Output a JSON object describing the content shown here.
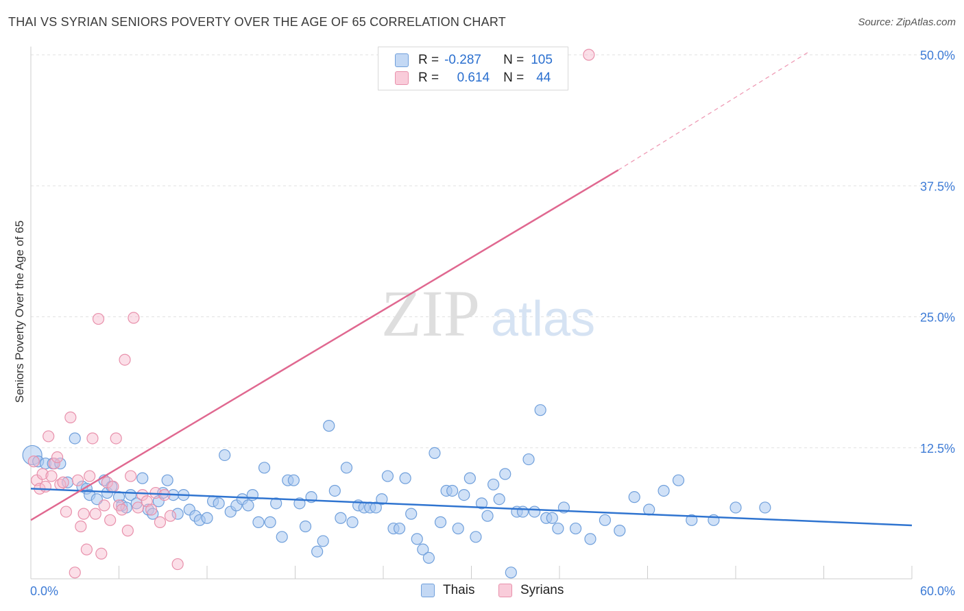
{
  "header": {
    "title": "THAI VS SYRIAN SENIORS POVERTY OVER THE AGE OF 65 CORRELATION CHART",
    "source": "Source: ZipAtlas.com"
  },
  "legend": {
    "rows": [
      {
        "r_label": "R =",
        "r_value": "-0.287",
        "n_label": "N =",
        "n_value": "105",
        "color": "#a9c8f0"
      },
      {
        "r_label": "R =",
        "r_value": "0.614",
        "n_label": "N =",
        "n_value": "44",
        "color": "#f7b9cc"
      }
    ]
  },
  "bottom_legend": [
    "Thais",
    "Syrians"
  ],
  "watermark": {
    "part1": "ZIP",
    "part2": "atlas"
  },
  "chart_data": {
    "type": "scatter",
    "title": "THAI VS SYRIAN SENIORS POVERTY OVER THE AGE OF 65 CORRELATION CHART",
    "xlabel": "",
    "ylabel": "Seniors Poverty Over the Age of 65",
    "xlim": [
      0,
      60
    ],
    "ylim": [
      0,
      50
    ],
    "x_tick_labels": [
      "0.0%",
      "60.0%"
    ],
    "y_tick_labels": [
      "12.5%",
      "25.0%",
      "37.5%",
      "50.0%"
    ],
    "y_ticks": [
      12.5,
      25,
      37.5,
      50
    ],
    "grid": true,
    "colors": {
      "thais_fill": "#a9c8f0",
      "thais_stroke": "#6f9fdb",
      "thais_line": "#2f74d0",
      "syrians_fill": "#f7b9cc",
      "syrians_stroke": "#e890ab",
      "syrians_line": "#e06890",
      "tick_label": "#3d7bd6"
    },
    "series": [
      {
        "name": "Thais",
        "r": -0.287,
        "n": 105,
        "trend": {
          "x": [
            0,
            60
          ],
          "y": [
            8.6,
            5.1
          ]
        },
        "points": [
          [
            0.1,
            11.8
          ],
          [
            0.5,
            11.2
          ],
          [
            1.0,
            11.0
          ],
          [
            1.5,
            11.0
          ],
          [
            2.0,
            11.0
          ],
          [
            2.5,
            9.2
          ],
          [
            3.0,
            13.4
          ],
          [
            3.5,
            8.8
          ],
          [
            3.8,
            8.6
          ],
          [
            4.0,
            8.0
          ],
          [
            4.5,
            7.6
          ],
          [
            5.0,
            9.4
          ],
          [
            5.2,
            8.2
          ],
          [
            5.5,
            8.8
          ],
          [
            6.0,
            7.8
          ],
          [
            6.2,
            7.0
          ],
          [
            6.5,
            6.8
          ],
          [
            6.8,
            8.0
          ],
          [
            7.2,
            7.2
          ],
          [
            7.6,
            9.6
          ],
          [
            8.0,
            6.6
          ],
          [
            8.3,
            6.2
          ],
          [
            8.7,
            7.4
          ],
          [
            9.0,
            8.2
          ],
          [
            9.3,
            9.4
          ],
          [
            9.7,
            8.0
          ],
          [
            10.0,
            6.2
          ],
          [
            10.4,
            8.0
          ],
          [
            10.8,
            6.6
          ],
          [
            11.2,
            6.0
          ],
          [
            11.5,
            5.6
          ],
          [
            12.0,
            5.8
          ],
          [
            12.4,
            7.4
          ],
          [
            12.8,
            7.2
          ],
          [
            13.2,
            11.8
          ],
          [
            13.6,
            6.4
          ],
          [
            14.0,
            7.0
          ],
          [
            14.4,
            7.6
          ],
          [
            14.8,
            7.0
          ],
          [
            15.1,
            8.0
          ],
          [
            15.5,
            5.4
          ],
          [
            15.9,
            10.6
          ],
          [
            16.3,
            5.4
          ],
          [
            16.7,
            7.2
          ],
          [
            17.1,
            4.0
          ],
          [
            17.5,
            9.4
          ],
          [
            17.9,
            9.4
          ],
          [
            18.3,
            7.2
          ],
          [
            18.7,
            5.0
          ],
          [
            19.1,
            7.8
          ],
          [
            19.5,
            2.6
          ],
          [
            19.9,
            3.6
          ],
          [
            20.3,
            14.6
          ],
          [
            20.7,
            8.4
          ],
          [
            21.1,
            5.8
          ],
          [
            21.5,
            10.6
          ],
          [
            21.9,
            5.4
          ],
          [
            22.3,
            7.0
          ],
          [
            22.7,
            6.8
          ],
          [
            23.1,
            6.8
          ],
          [
            23.5,
            6.8
          ],
          [
            23.9,
            7.6
          ],
          [
            24.3,
            9.8
          ],
          [
            24.7,
            4.8
          ],
          [
            25.1,
            4.8
          ],
          [
            25.5,
            9.6
          ],
          [
            25.9,
            6.2
          ],
          [
            26.3,
            3.8
          ],
          [
            26.7,
            2.8
          ],
          [
            27.1,
            2.0
          ],
          [
            27.5,
            12.0
          ],
          [
            27.9,
            5.4
          ],
          [
            28.3,
            8.4
          ],
          [
            28.7,
            8.4
          ],
          [
            29.1,
            4.8
          ],
          [
            29.5,
            8.0
          ],
          [
            29.9,
            9.6
          ],
          [
            30.3,
            4.0
          ],
          [
            30.7,
            7.2
          ],
          [
            31.1,
            6.0
          ],
          [
            31.5,
            9.0
          ],
          [
            31.9,
            7.6
          ],
          [
            32.3,
            10.0
          ],
          [
            32.7,
            0.6
          ],
          [
            33.1,
            6.4
          ],
          [
            33.5,
            6.4
          ],
          [
            33.9,
            11.4
          ],
          [
            34.3,
            6.4
          ],
          [
            34.7,
            16.1
          ],
          [
            35.1,
            5.8
          ],
          [
            35.5,
            5.8
          ],
          [
            35.9,
            4.8
          ],
          [
            36.3,
            6.8
          ],
          [
            37.1,
            4.8
          ],
          [
            38.1,
            3.8
          ],
          [
            39.1,
            5.6
          ],
          [
            40.1,
            4.6
          ],
          [
            41.1,
            7.8
          ],
          [
            42.1,
            6.6
          ],
          [
            43.1,
            8.4
          ],
          [
            44.1,
            9.4
          ],
          [
            45.0,
            5.6
          ],
          [
            46.5,
            5.6
          ],
          [
            48.0,
            6.8
          ],
          [
            50.0,
            6.8
          ]
        ]
      },
      {
        "name": "Syrians",
        "r": 0.614,
        "n": 44,
        "trend": {
          "x": [
            0,
            40
          ],
          "y": [
            5.6,
            39.0
          ],
          "dashed_to": {
            "x": 53,
            "y": 50.3
          }
        },
        "points": [
          [
            0.2,
            11.2
          ],
          [
            0.4,
            9.4
          ],
          [
            0.6,
            8.6
          ],
          [
            0.8,
            10.0
          ],
          [
            1.0,
            8.8
          ],
          [
            1.2,
            13.6
          ],
          [
            1.4,
            9.8
          ],
          [
            1.6,
            11.0
          ],
          [
            1.8,
            11.6
          ],
          [
            2.0,
            9.0
          ],
          [
            2.2,
            9.2
          ],
          [
            2.4,
            6.4
          ],
          [
            2.7,
            15.4
          ],
          [
            3.0,
            0.6
          ],
          [
            3.2,
            9.4
          ],
          [
            3.4,
            5.0
          ],
          [
            3.6,
            6.2
          ],
          [
            3.8,
            2.8
          ],
          [
            4.0,
            9.8
          ],
          [
            4.2,
            13.4
          ],
          [
            4.4,
            6.2
          ],
          [
            4.6,
            24.8
          ],
          [
            4.8,
            2.4
          ],
          [
            5.0,
            7.0
          ],
          [
            5.2,
            9.2
          ],
          [
            5.4,
            5.6
          ],
          [
            5.6,
            8.8
          ],
          [
            5.8,
            13.4
          ],
          [
            6.0,
            7.0
          ],
          [
            6.2,
            6.6
          ],
          [
            6.4,
            20.9
          ],
          [
            6.6,
            4.6
          ],
          [
            6.8,
            9.8
          ],
          [
            7.0,
            24.9
          ],
          [
            7.3,
            6.8
          ],
          [
            7.6,
            8.0
          ],
          [
            7.9,
            7.4
          ],
          [
            8.2,
            6.6
          ],
          [
            8.5,
            8.2
          ],
          [
            8.8,
            5.4
          ],
          [
            9.1,
            8.0
          ],
          [
            9.5,
            6.0
          ],
          [
            10.0,
            1.4
          ],
          [
            38.0,
            50.0
          ]
        ]
      }
    ]
  }
}
